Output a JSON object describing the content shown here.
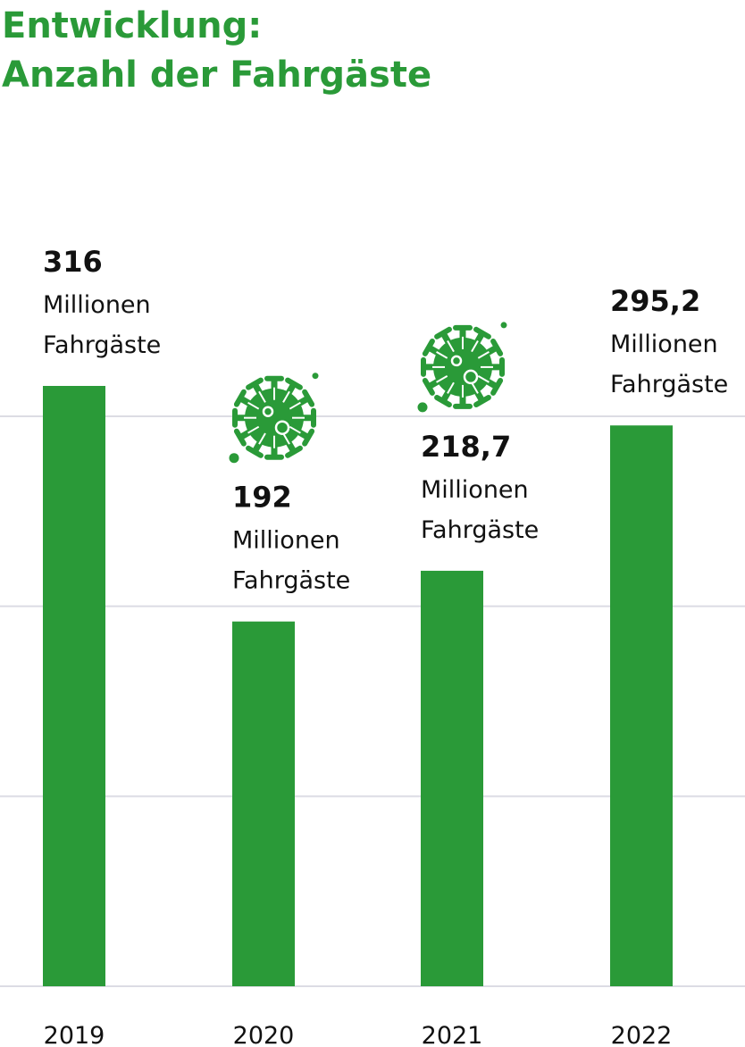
{
  "chart_data": {
    "type": "bar",
    "title_lines": [
      "Entwicklung:",
      "Anzahl der Fahrgäste"
    ],
    "categories": [
      "2019",
      "2020",
      "2021",
      "2022"
    ],
    "values": [
      316,
      192,
      218.7,
      295.2
    ],
    "value_labels": [
      "316",
      "192",
      "218,7",
      "295,2"
    ],
    "unit_lines": [
      "Millionen",
      "Fahrgäste"
    ],
    "covid_icon_years": [
      "2020",
      "2021"
    ],
    "ylim": [
      0,
      316
    ],
    "gridlines": [
      100,
      200,
      300
    ],
    "grid": true,
    "xlabel": "",
    "ylabel": "",
    "colors": {
      "bar": "#2a9a38",
      "title": "#2a9a38",
      "grid": "#dcdce4",
      "text": "#111111"
    },
    "icon": "virus-icon"
  }
}
